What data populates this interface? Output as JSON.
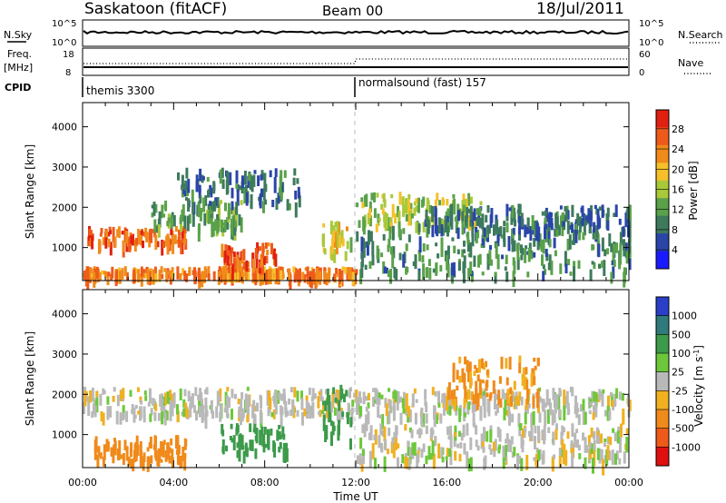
{
  "header": {
    "station": "Saskatoon (fitACF)",
    "beam": "Beam 00",
    "date": "18/Jul/2011"
  },
  "status_panels": {
    "nsky_label": "N.Sky",
    "nsky_ticks": [
      "10^5",
      "10^0"
    ],
    "nsearch_label": "N.Search",
    "nsearch_ticks": [
      "10^5",
      "10^0"
    ],
    "freq_label": "Freq.",
    "freq_unit": "[MHz]",
    "freq_ticks": [
      "18",
      "8"
    ],
    "nave_label": "Nave",
    "nave_ticks": [
      "60",
      "0"
    ],
    "cpid_label": "CPID",
    "cpid_segments": [
      {
        "label": "themis 3300",
        "start_hour": 0
      },
      {
        "label": "normalsound (fast) 157",
        "start_hour": 12
      }
    ]
  },
  "chart_data": [
    {
      "type": "heatmap",
      "title": "",
      "xlabel": "Time UT",
      "ylabel": "Slant Range [km]",
      "x_ticks": [
        "00:00",
        "04:00",
        "08:00",
        "12:00",
        "16:00",
        "20:00",
        "00:00"
      ],
      "xlim_hours": [
        0,
        24
      ],
      "y_ticks": [
        1000,
        2000,
        3000,
        4000
      ],
      "ylim": [
        180,
        4600
      ],
      "colorbar": {
        "label": "Power [dB]",
        "ticks": [
          4,
          8,
          12,
          16,
          20,
          24,
          28
        ],
        "colors": [
          "#1a1aff",
          "#2a45a8",
          "#3d7a5c",
          "#5aa14a",
          "#a9c83a",
          "#f5c02a",
          "#f08a1a",
          "#ee5a1a",
          "#e02010"
        ]
      },
      "regions": [
        {
          "t0": 0.0,
          "t1": 12.0,
          "r0": 250,
          "r1": 450,
          "value": 24
        },
        {
          "t0": 0.2,
          "t1": 4.5,
          "r0": 1050,
          "r1": 1450,
          "value": 26
        },
        {
          "t0": 3.0,
          "t1": 7.0,
          "r0": 1400,
          "r1": 2100,
          "value": 12
        },
        {
          "t0": 6.0,
          "t1": 8.5,
          "r0": 500,
          "r1": 1050,
          "value": 27
        },
        {
          "t0": 4.0,
          "t1": 9.5,
          "r0": 2000,
          "r1": 2900,
          "value": 8
        },
        {
          "t0": 10.5,
          "t1": 11.8,
          "r0": 800,
          "r1": 1600,
          "value": 18
        },
        {
          "t0": 12.0,
          "t1": 17.5,
          "r0": 1500,
          "r1": 2300,
          "value": 16
        },
        {
          "t0": 12.0,
          "t1": 24.0,
          "r0": 300,
          "r1": 1500,
          "value": 10
        },
        {
          "t0": 15.0,
          "t1": 24.0,
          "r0": 1400,
          "r1": 2000,
          "value": 8
        }
      ]
    },
    {
      "type": "heatmap",
      "title": "",
      "xlabel": "Time UT",
      "ylabel": "Slant Range [km]",
      "x_ticks": [
        "00:00",
        "04:00",
        "08:00",
        "12:00",
        "16:00",
        "20:00",
        "00:00"
      ],
      "xlim_hours": [
        0,
        24
      ],
      "y_ticks": [
        1000,
        2000,
        3000,
        4000
      ],
      "ylim": [
        180,
        4600
      ],
      "colorbar": {
        "label": "Velocity [m s",
        "label_sup": "-1",
        "label_end": "]",
        "ticks": [
          "1000",
          "500",
          "100",
          "25",
          "-25",
          "-100",
          "-500",
          "-1000"
        ],
        "colors": [
          "#2a3fc8",
          "#2f7a7a",
          "#3c9a4a",
          "#6cc83a",
          "#b9b9b9",
          "#f0b020",
          "#f08a1a",
          "#ee5a1a",
          "#e01010"
        ]
      },
      "regions": [
        {
          "t0": 0.0,
          "t1": 24.0,
          "r0": 1400,
          "r1": 2100,
          "value": 0
        },
        {
          "t0": 0.5,
          "t1": 4.5,
          "r0": 300,
          "r1": 900,
          "value": -150
        },
        {
          "t0": 6.0,
          "t1": 9.0,
          "r0": 500,
          "r1": 1200,
          "value": 200
        },
        {
          "t0": 10.5,
          "t1": 11.8,
          "r0": 800,
          "r1": 2200,
          "value": 150
        },
        {
          "t0": 12.0,
          "t1": 24.0,
          "r0": 300,
          "r1": 1200,
          "value": 0
        },
        {
          "t0": 16.0,
          "t1": 20.0,
          "r0": 1800,
          "r1": 2900,
          "value": -120
        }
      ]
    }
  ]
}
